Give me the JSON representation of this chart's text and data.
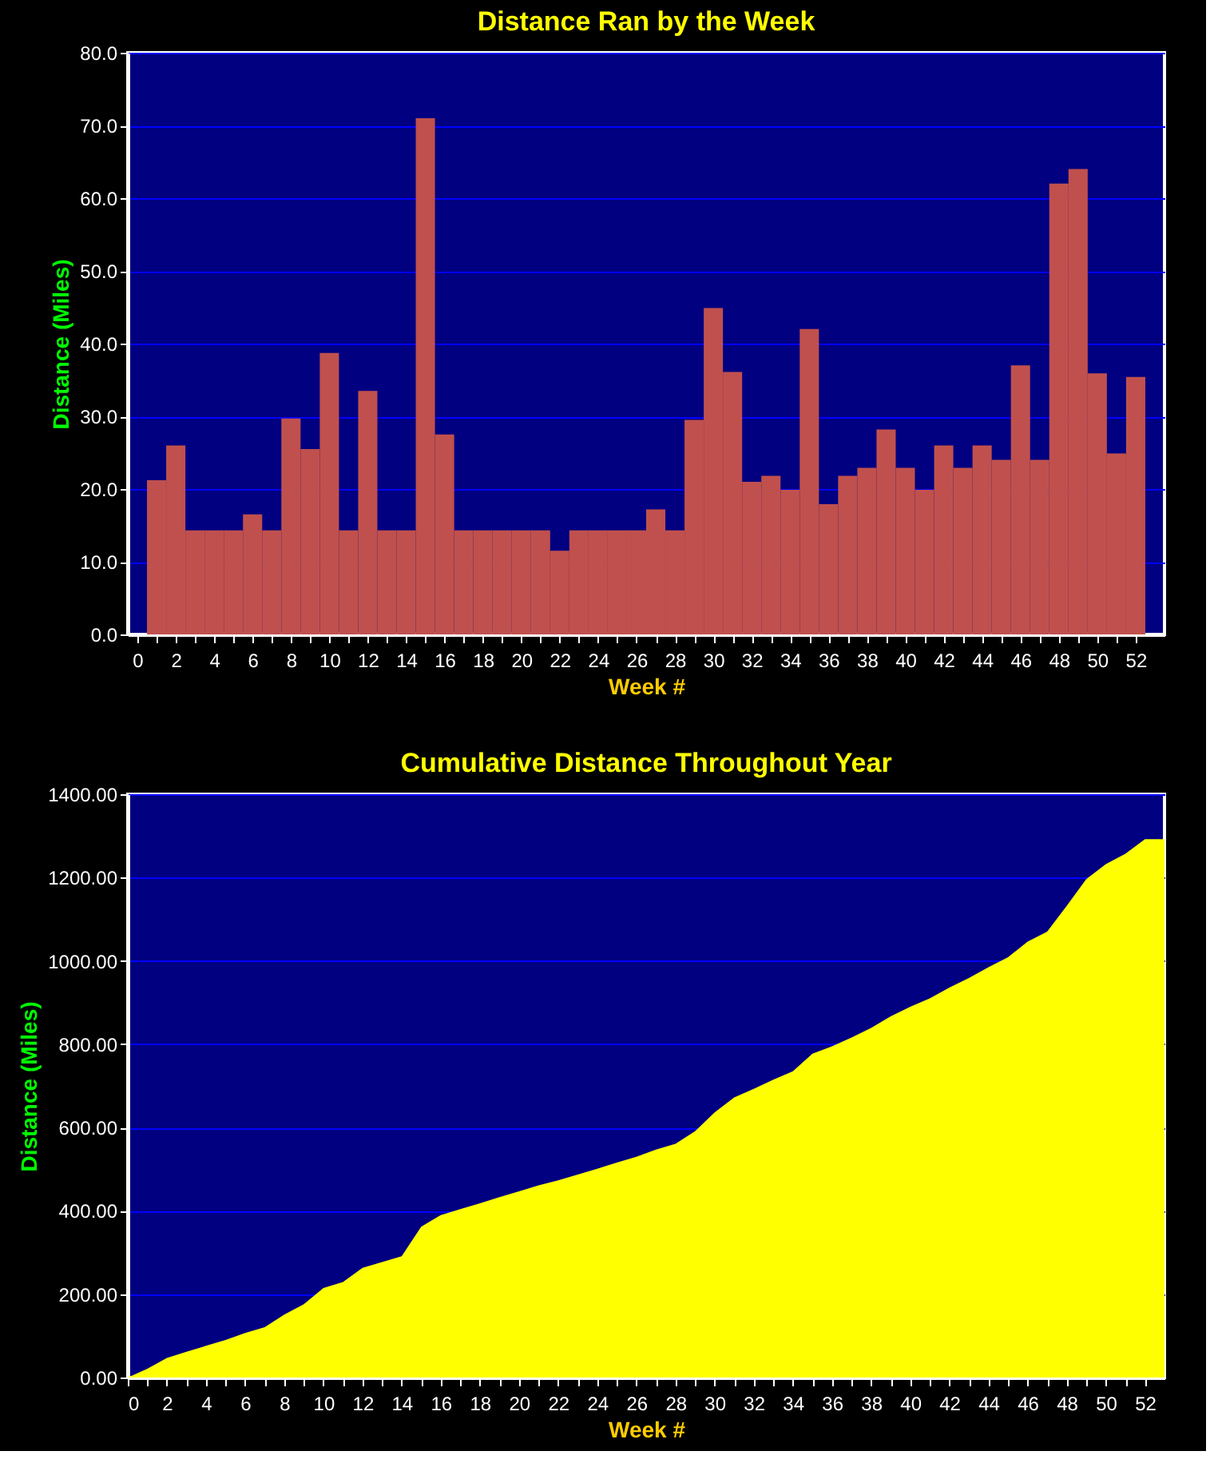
{
  "chart_data": [
    {
      "type": "bar",
      "title": "Distance Ran by the Week",
      "xlabel": "Week #",
      "ylabel": "Distance (Miles)",
      "color": "#c0504d",
      "x": [
        1,
        2,
        3,
        4,
        5,
        6,
        7,
        8,
        9,
        10,
        11,
        12,
        13,
        14,
        15,
        16,
        17,
        18,
        19,
        20,
        21,
        22,
        23,
        24,
        25,
        26,
        27,
        28,
        29,
        30,
        31,
        32,
        33,
        34,
        35,
        36,
        37,
        38,
        39,
        40,
        41,
        42,
        43,
        44,
        45,
        46,
        47,
        48,
        49,
        50,
        51,
        52
      ],
      "values": [
        21.2,
        26.0,
        14.3,
        14.3,
        14.3,
        16.5,
        14.3,
        29.7,
        25.5,
        38.7,
        14.3,
        33.5,
        14.3,
        14.3,
        71.0,
        27.5,
        14.3,
        14.3,
        14.3,
        14.3,
        14.3,
        11.5,
        14.3,
        14.3,
        14.3,
        14.3,
        17.2,
        14.3,
        29.5,
        44.9,
        36.1,
        21.0,
        21.8,
        19.9,
        42.0,
        17.9,
        21.8,
        22.9,
        28.2,
        22.9,
        19.9,
        26.0,
        22.9,
        26.0,
        24.0,
        37.0,
        24.0,
        62.0,
        64.0,
        35.9,
        24.9,
        35.4
      ],
      "xlim": [
        -0.5,
        53.5
      ],
      "xticks": [
        0,
        {
          "value": 1,
          "label": null
        },
        2,
        {
          "value": 3,
          "label": null
        },
        4,
        {
          "value": 5,
          "label": null
        },
        6,
        {
          "value": 7,
          "label": null
        },
        8,
        {
          "value": 9,
          "label": null
        },
        10,
        {
          "value": 11,
          "label": null
        },
        12,
        {
          "value": 13,
          "label": null
        },
        14,
        {
          "value": 15,
          "label": null
        },
        16,
        {
          "value": 17,
          "label": null
        },
        18,
        {
          "value": 19,
          "label": null
        },
        20,
        {
          "value": 21,
          "label": null
        },
        22,
        {
          "value": 23,
          "label": null
        },
        24,
        {
          "value": 25,
          "label": null
        },
        26,
        {
          "value": 27,
          "label": null
        },
        28,
        {
          "value": 29,
          "label": null
        },
        30,
        {
          "value": 31,
          "label": null
        },
        32,
        {
          "value": 33,
          "label": null
        },
        34,
        {
          "value": 35,
          "label": null
        },
        36,
        {
          "value": 37,
          "label": null
        },
        38,
        {
          "value": 39,
          "label": null
        },
        40,
        {
          "value": 41,
          "label": null
        },
        42,
        {
          "value": 43,
          "label": null
        },
        44,
        {
          "value": 45,
          "label": null
        },
        46,
        {
          "value": 47,
          "label": null
        },
        48,
        {
          "value": 49,
          "label": null
        },
        50,
        {
          "value": 51,
          "label": null
        },
        52
      ],
      "ylim": [
        0,
        80
      ],
      "yticks": [
        {
          "value": 0,
          "label": "0.0"
        },
        {
          "value": 10,
          "label": "10.0"
        },
        {
          "value": 20,
          "label": "20.0"
        },
        {
          "value": 30,
          "label": "30.0"
        },
        {
          "value": 40,
          "label": "40.0"
        },
        {
          "value": 50,
          "label": "50.0"
        },
        {
          "value": 60,
          "label": "60.0"
        },
        {
          "value": 70,
          "label": "70.0"
        },
        {
          "value": 80,
          "label": "80.0"
        }
      ],
      "grid": "y"
    },
    {
      "type": "area",
      "title": "Cumulative Distance Throughout Year",
      "xlabel": "Week #",
      "ylabel": "Distance (Miles)",
      "color": "#ffff00",
      "x": [
        0,
        1,
        2,
        3,
        4,
        5,
        6,
        7,
        8,
        9,
        10,
        11,
        12,
        13,
        14,
        15,
        16,
        17,
        18,
        19,
        20,
        21,
        22,
        23,
        24,
        25,
        26,
        27,
        28,
        29,
        30,
        31,
        32,
        33,
        34,
        35,
        36,
        37,
        38,
        39,
        40,
        41,
        42,
        43,
        44,
        45,
        46,
        47,
        48,
        49,
        50,
        51,
        52,
        53
      ],
      "values": [
        0,
        21,
        47,
        62,
        76,
        90,
        107,
        121,
        151,
        176,
        215,
        229,
        263,
        277,
        291,
        362,
        390,
        404,
        418,
        433,
        447,
        461,
        473,
        487,
        501,
        516,
        530,
        547,
        561,
        591,
        636,
        672,
        693,
        715,
        735,
        777,
        795,
        816,
        839,
        867,
        890,
        910,
        936,
        959,
        985,
        1009,
        1046,
        1070,
        1132,
        1196,
        1232,
        1257,
        1292,
        1292
      ],
      "xlim": [
        0,
        53
      ],
      "xticks": [
        0,
        {
          "value": 1,
          "label": null
        },
        2,
        {
          "value": 3,
          "label": null
        },
        4,
        {
          "value": 5,
          "label": null
        },
        6,
        {
          "value": 7,
          "label": null
        },
        8,
        {
          "value": 9,
          "label": null
        },
        10,
        {
          "value": 11,
          "label": null
        },
        12,
        {
          "value": 13,
          "label": null
        },
        14,
        {
          "value": 15,
          "label": null
        },
        16,
        {
          "value": 17,
          "label": null
        },
        18,
        {
          "value": 19,
          "label": null
        },
        20,
        {
          "value": 21,
          "label": null
        },
        22,
        {
          "value": 23,
          "label": null
        },
        24,
        {
          "value": 25,
          "label": null
        },
        26,
        {
          "value": 27,
          "label": null
        },
        28,
        {
          "value": 29,
          "label": null
        },
        30,
        {
          "value": 31,
          "label": null
        },
        32,
        {
          "value": 33,
          "label": null
        },
        34,
        {
          "value": 35,
          "label": null
        },
        36,
        {
          "value": 37,
          "label": null
        },
        38,
        {
          "value": 39,
          "label": null
        },
        40,
        {
          "value": 41,
          "label": null
        },
        42,
        {
          "value": 43,
          "label": null
        },
        44,
        {
          "value": 45,
          "label": null
        },
        46,
        {
          "value": 47,
          "label": null
        },
        48,
        {
          "value": 49,
          "label": null
        },
        50,
        {
          "value": 51,
          "label": null
        },
        52
      ],
      "ylim": [
        0,
        1400
      ],
      "yticks": [
        {
          "value": 0,
          "label": "0.00"
        },
        {
          "value": 200,
          "label": "200.00"
        },
        {
          "value": 400,
          "label": "400.00"
        },
        {
          "value": 600,
          "label": "600.00"
        },
        {
          "value": 800,
          "label": "800.00"
        },
        {
          "value": 1000,
          "label": "1000.00"
        },
        {
          "value": 1200,
          "label": "1200.00"
        },
        {
          "value": 1400,
          "label": "1400.00"
        }
      ],
      "grid": "y"
    }
  ]
}
